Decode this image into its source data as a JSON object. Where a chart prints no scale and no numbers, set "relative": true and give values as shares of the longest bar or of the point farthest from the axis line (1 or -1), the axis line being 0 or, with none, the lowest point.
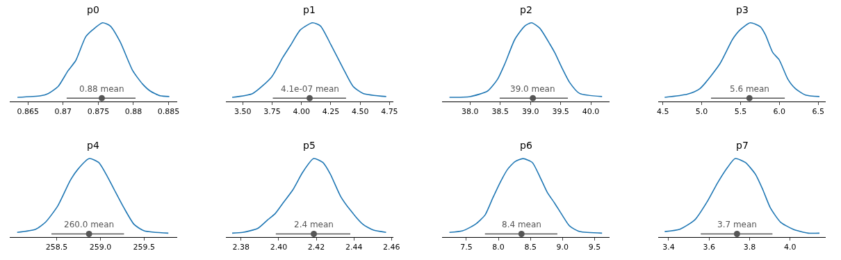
{
  "chart_data": [
    {
      "type": "line",
      "title": "p0",
      "relative": true,
      "tick_labels": "x",
      "xlim": [
        0.8624,
        0.8862
      ],
      "xticks": [
        0.865,
        0.87,
        0.875,
        0.88,
        0.885
      ],
      "annotations": [
        {
          "text": "0.88 mean",
          "x": 0.8755,
          "y": 0.04
        }
      ],
      "series": [
        {
          "color": "#1f77b4",
          "x": [
            0.8635,
            0.8668,
            0.8679,
            0.8693,
            0.8707,
            0.8718,
            0.8732,
            0.8742,
            0.8756,
            0.8767,
            0.8781,
            0.8799,
            0.8813,
            0.8824,
            0.8838,
            0.8851
          ],
          "values": [
            0.05,
            0.07,
            0.1,
            0.19,
            0.39,
            0.52,
            0.82,
            0.91,
            1,
            0.96,
            0.76,
            0.39,
            0.22,
            0.13,
            0.07,
            0.06
          ]
        },
        {
          "type": "scatter",
          "marker": "circle",
          "color": "#555555",
          "x": [
            0.8755
          ],
          "values": [
            0.04
          ],
          "xerrors": [
            [
              0.8705,
              0.8803
            ]
          ]
        }
      ]
    },
    {
      "type": "line",
      "title": "p1",
      "relative": true,
      "tick_labels": "x",
      "xlim": [
        3.357,
        4.782
      ],
      "xticks": [
        {
          "value": 3.5,
          "label": "3.50"
        },
        3.75,
        {
          "value": 4.0,
          "label": "4.00"
        },
        4.25,
        {
          "value": 4.5,
          "label": "4.50"
        },
        4.75
      ],
      "annotations": [
        {
          "text": "4.1e-07 mean",
          "x": 4.07,
          "y": 0.04
        }
      ],
      "series": [
        {
          "color": "#1f77b4",
          "x": [
            3.41,
            3.585,
            3.746,
            3.842,
            3.906,
            3.991,
            4.094,
            4.162,
            4.248,
            4.355,
            4.44,
            4.526,
            4.722
          ],
          "values": [
            0.05,
            0.1,
            0.31,
            0.56,
            0.71,
            0.91,
            1,
            0.96,
            0.73,
            0.42,
            0.19,
            0.1,
            0.06
          ]
        },
        {
          "type": "scatter",
          "marker": "circle",
          "color": "#555555",
          "x": [
            4.07
          ],
          "values": [
            0.04
          ],
          "xerrors": [
            [
              3.756,
              4.38
            ]
          ]
        }
      ]
    },
    {
      "type": "line",
      "title": "p2",
      "relative": true,
      "tick_labels": "x",
      "xlim": [
        37.538,
        40.309
      ],
      "xticks": [
        {
          "value": 38,
          "label": "38.0"
        },
        38.5,
        {
          "value": 39,
          "label": "39.0"
        },
        39.5,
        {
          "value": 40,
          "label": "40.0"
        }
      ],
      "annotations": [
        {
          "text": "39.0 mean",
          "x": 39.04,
          "y": 0.04
        }
      ],
      "series": [
        {
          "color": "#1f77b4",
          "x": [
            37.658,
            38.0,
            38.289,
            38.454,
            38.577,
            38.742,
            38.907,
            39.019,
            39.155,
            39.32,
            39.402,
            39.526,
            39.649,
            39.814,
            40.186
          ],
          "values": [
            0.05,
            0.06,
            0.13,
            0.28,
            0.48,
            0.79,
            0.96,
            1,
            0.93,
            0.73,
            0.62,
            0.42,
            0.24,
            0.1,
            0.06
          ]
        },
        {
          "type": "scatter",
          "marker": "circle",
          "color": "#555555",
          "x": [
            39.04
          ],
          "values": [
            0.04
          ],
          "xerrors": [
            [
              38.49,
              39.62
            ]
          ]
        }
      ]
    },
    {
      "type": "line",
      "title": "p3",
      "relative": true,
      "tick_labels": "x",
      "xlim": [
        4.443,
        6.597
      ],
      "xticks": [
        4.5,
        {
          "value": 5,
          "label": "5.0"
        },
        5.5,
        {
          "value": 6,
          "label": "6.0"
        },
        6.5
      ],
      "annotations": [
        {
          "text": "5.6 mean",
          "x": 5.615,
          "y": 0.04
        }
      ],
      "series": [
        {
          "color": "#1f77b4",
          "x": [
            4.523,
            4.814,
            4.976,
            5.236,
            5.398,
            5.495,
            5.625,
            5.754,
            5.819,
            5.916,
            5.997,
            6.111,
            6.208,
            6.338,
            6.516
          ],
          "values": [
            0.05,
            0.09,
            0.16,
            0.48,
            0.79,
            0.91,
            1,
            0.95,
            0.85,
            0.62,
            0.53,
            0.28,
            0.16,
            0.08,
            0.06
          ]
        },
        {
          "type": "scatter",
          "marker": "circle",
          "color": "#555555",
          "x": [
            5.615
          ],
          "values": [
            0.04
          ],
          "xerrors": [
            [
              5.12,
              6.07
            ]
          ]
        }
      ]
    },
    {
      "type": "line",
      "title": "p4",
      "relative": true,
      "tick_labels": "x",
      "xlim": [
        257.963,
        259.876
      ],
      "xticks": [
        258.5,
        {
          "value": 259,
          "label": "259.0"
        },
        259.5
      ],
      "annotations": [
        {
          "text": "260.0 mean",
          "x": 258.87,
          "y": 0.04
        }
      ],
      "series": [
        {
          "color": "#1f77b4",
          "x": [
            258.048,
            258.26,
            258.373,
            258.514,
            258.655,
            258.74,
            258.873,
            258.98,
            259.08,
            259.16,
            259.27,
            259.386,
            259.5,
            259.777
          ],
          "values": [
            0.06,
            0.1,
            0.19,
            0.4,
            0.72,
            0.86,
            1,
            0.95,
            0.77,
            0.6,
            0.37,
            0.16,
            0.08,
            0.05
          ]
        },
        {
          "type": "scatter",
          "marker": "circle",
          "color": "#555555",
          "x": [
            258.87
          ],
          "values": [
            0.04
          ],
          "xerrors": [
            [
              258.44,
              259.27
            ]
          ]
        }
      ]
    },
    {
      "type": "line",
      "title": "p5",
      "relative": true,
      "tick_labels": "x",
      "xlim": [
        2.372,
        2.4609
      ],
      "xticks": [
        2.38,
        {
          "value": 2.4,
          "label": "2.40"
        },
        2.42,
        2.44,
        2.46
      ],
      "annotations": [
        {
          "text": "2.4 mean",
          "x": 2.4187,
          "y": 0.04
        }
      ],
      "series": [
        {
          "color": "#1f77b4",
          "x": [
            2.3753,
            2.3809,
            2.3889,
            2.3942,
            2.3982,
            2.4022,
            2.4075,
            2.4129,
            2.4186,
            2.4235,
            2.4275,
            2.4329,
            2.4382,
            2.4449,
            2.4502,
            2.4571
          ],
          "values": [
            0.05,
            0.06,
            0.11,
            0.22,
            0.3,
            0.43,
            0.6,
            0.83,
            1,
            0.95,
            0.8,
            0.52,
            0.34,
            0.16,
            0.09,
            0.06
          ]
        },
        {
          "type": "scatter",
          "marker": "circle",
          "color": "#555555",
          "x": [
            2.4187
          ],
          "values": [
            0.04
          ],
          "xerrors": [
            [
              2.3985,
              2.4381
            ]
          ]
        }
      ]
    },
    {
      "type": "line",
      "title": "p6",
      "relative": true,
      "tick_labels": "x",
      "xlim": [
        7.123,
        9.733
      ],
      "xticks": [
        7.5,
        {
          "value": 8,
          "label": "8.0"
        },
        8.5,
        {
          "value": 9,
          "label": "9.0"
        },
        9.5
      ],
      "annotations": [
        {
          "text": "8.4 mean",
          "x": 8.36,
          "y": 0.04
        }
      ],
      "series": [
        {
          "color": "#1f77b4",
          "x": [
            7.236,
            7.442,
            7.636,
            7.791,
            7.908,
            8.024,
            8.141,
            8.257,
            8.385,
            8.529,
            8.646,
            8.762,
            8.879,
            8.995,
            9.112,
            9.267,
            9.617
          ],
          "values": [
            0.06,
            0.08,
            0.16,
            0.28,
            0.49,
            0.69,
            0.86,
            0.96,
            1,
            0.95,
            0.77,
            0.57,
            0.43,
            0.28,
            0.14,
            0.07,
            0.05
          ]
        },
        {
          "type": "scatter",
          "marker": "circle",
          "color": "#555555",
          "x": [
            8.36
          ],
          "values": [
            0.04
          ],
          "xerrors": [
            [
              7.79,
              8.92
            ]
          ]
        }
      ]
    },
    {
      "type": "line",
      "title": "p7",
      "relative": true,
      "tick_labels": "x",
      "xlim": [
        3.35,
        4.176
      ],
      "xticks": [
        3.4,
        3.6,
        3.8,
        {
          "value": 4,
          "label": "4.0"
        }
      ],
      "annotations": [
        {
          "text": "3.7 mean",
          "x": 3.738,
          "y": 0.04
        }
      ],
      "series": [
        {
          "color": "#1f77b4",
          "x": [
            3.381,
            3.456,
            3.53,
            3.593,
            3.642,
            3.692,
            3.729,
            3.779,
            3.829,
            3.866,
            3.903,
            3.953,
            4.015,
            4.089,
            4.145
          ],
          "values": [
            0.07,
            0.1,
            0.22,
            0.46,
            0.69,
            0.89,
            1,
            0.95,
            0.8,
            0.6,
            0.37,
            0.19,
            0.1,
            0.05,
            0.05
          ]
        },
        {
          "type": "scatter",
          "marker": "circle",
          "color": "#555555",
          "x": [
            3.738
          ],
          "values": [
            0.04
          ],
          "xerrors": [
            [
              3.559,
              3.913
            ]
          ]
        }
      ]
    }
  ]
}
